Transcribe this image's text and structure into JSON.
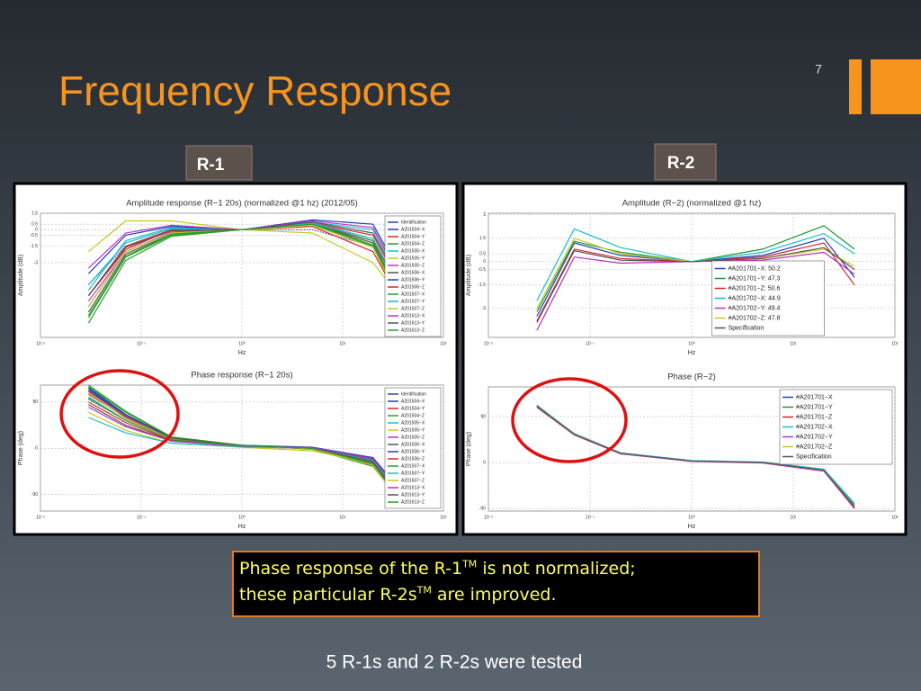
{
  "slide": {
    "title": "Frequency Response",
    "page_number": "7",
    "labels": [
      "R-1",
      "R-2"
    ],
    "callout": [
      "Phase response of the R-1",
      "TM",
      " is not normalized;",
      "these particular R-2s",
      "TM",
      " are improved."
    ],
    "footer": "5 R-1s and 2 R-2s were tested"
  },
  "chart_data": [
    {
      "type": "line",
      "title": "Amplitude response (R−1 20s) (normalized @1 hz) (2012/05)",
      "xlabel": "Hz",
      "ylabel": "Amplitude (dB)",
      "log_x": true,
      "grid": true,
      "legend": "upper right",
      "xlim": [
        0.01,
        100
      ],
      "xticks": [
        {
          "value": 0.01,
          "label": "10⁻²"
        },
        {
          "value": 0.1,
          "label": "10⁻¹"
        },
        {
          "value": 1,
          "label": "10⁰"
        },
        {
          "value": 10,
          "label": "10¹"
        },
        {
          "value": 100,
          "label": "10²"
        }
      ],
      "ylim": [
        -9.8,
        1.5
      ],
      "yticks": [
        1.5,
        0.5,
        0,
        -0.5,
        -1.5,
        -3
      ],
      "x": [
        0.03,
        0.07,
        0.2,
        1,
        5,
        20,
        40
      ],
      "series": [
        {
          "name": "Identification",
          "color": "#2a4a9a",
          "values": [
            -5,
            -1.5,
            0,
            0,
            0,
            -1.5,
            -5
          ]
        },
        {
          "name": "A201504−X",
          "color": "#1f3fbf",
          "values": [
            -7,
            -2,
            -0.3,
            0,
            0.5,
            -1,
            -6
          ]
        },
        {
          "name": "A201504−Y",
          "color": "#d62728",
          "values": [
            -6,
            -1.5,
            0,
            0,
            0.6,
            -0.5,
            -5.5
          ]
        },
        {
          "name": "A201504−Z",
          "color": "#2ca02c",
          "values": [
            -8,
            -2.5,
            -0.5,
            0,
            0.4,
            -1.5,
            -7
          ]
        },
        {
          "name": "A201505−X",
          "color": "#17becf",
          "values": [
            -5.5,
            -1,
            0.2,
            0,
            0.7,
            0,
            -5
          ]
        },
        {
          "name": "A201505−Y",
          "color": "#c8c820",
          "values": [
            -2,
            0.8,
            0.8,
            0,
            -0.3,
            -3,
            -6.5
          ]
        },
        {
          "name": "A201505−Z",
          "color": "#c130c1",
          "values": [
            -6.5,
            -2,
            -0.2,
            0,
            0.6,
            -1,
            -6
          ]
        },
        {
          "name": "A201506−X",
          "color": "#555555",
          "values": [
            -7.5,
            -2.2,
            -0.4,
            0,
            0.5,
            -1.2,
            -6.5
          ]
        },
        {
          "name": "A201506−Y",
          "color": "#1f3fbf",
          "values": [
            -4,
            -0.5,
            0.3,
            0,
            0.9,
            0.5,
            -4.5
          ]
        },
        {
          "name": "A201506−Z",
          "color": "#d62728",
          "values": [
            -6,
            -1.8,
            0,
            0,
            0.3,
            -2,
            -7
          ]
        },
        {
          "name": "A201507−X",
          "color": "#2ca02c",
          "values": [
            -8.5,
            -2.8,
            -0.6,
            0,
            0.5,
            -1,
            -6.8
          ]
        },
        {
          "name": "A201507−Y",
          "color": "#17becf",
          "values": [
            -5,
            -1.2,
            0.1,
            0,
            0.6,
            -0.8,
            -5.8
          ]
        },
        {
          "name": "A201507−Z",
          "color": "#c8c820",
          "values": [
            -7,
            -2,
            -0.3,
            0,
            0.4,
            -1.6,
            -7.2
          ]
        },
        {
          "name": "A201613−X",
          "color": "#c130c1",
          "values": [
            -3.5,
            -0.3,
            0.4,
            0,
            0.8,
            0.2,
            -4.8
          ]
        },
        {
          "name": "A201613−Y",
          "color": "#555555",
          "values": [
            -6,
            -1.6,
            -0.1,
            0,
            0.7,
            -0.3,
            -5.2
          ]
        },
        {
          "name": "A201613−Z",
          "color": "#2ca02c",
          "values": [
            -7.8,
            -2.4,
            -0.4,
            0,
            0.5,
            -1.4,
            -6.6
          ]
        }
      ]
    },
    {
      "type": "line",
      "title": "Phase response (R−1 20s)",
      "xlabel": "Hz",
      "ylabel": "Phase (deg)",
      "log_x": true,
      "grid": true,
      "legend": "upper right",
      "xlim": [
        0.01,
        100
      ],
      "xticks": [
        {
          "value": 0.01,
          "label": "10⁻²"
        },
        {
          "value": 0.1,
          "label": "10⁻¹"
        },
        {
          "value": 1,
          "label": "10⁰"
        },
        {
          "value": 10,
          "label": "10¹"
        },
        {
          "value": 100,
          "label": "10²"
        }
      ],
      "ylim": [
        -122,
        123
      ],
      "yticks": [
        90,
        0,
        -90
      ],
      "x": [
        0.03,
        0.07,
        0.2,
        1,
        5,
        20,
        40
      ],
      "series": [
        {
          "name": "Identification",
          "color": "#2a4a9a",
          "values": [
            95,
            55,
            18,
            5,
            0,
            -25,
            -95
          ]
        },
        {
          "name": "A201504−X",
          "color": "#1f3fbf",
          "values": [
            115,
            65,
            20,
            6,
            1,
            -30,
            -105
          ]
        },
        {
          "name": "A201504−Y",
          "color": "#d62728",
          "values": [
            105,
            60,
            18,
            5,
            0,
            -25,
            -95
          ]
        },
        {
          "name": "A201504−Z",
          "color": "#2ca02c",
          "values": [
            120,
            70,
            22,
            6,
            -2,
            -35,
            -110
          ]
        },
        {
          "name": "A201505−X",
          "color": "#17becf",
          "values": [
            100,
            55,
            16,
            5,
            1,
            -20,
            -90
          ]
        },
        {
          "name": "A201505−Y",
          "color": "#c8c820",
          "values": [
            70,
            35,
            10,
            2,
            -5,
            -30,
            -85
          ]
        },
        {
          "name": "A201505−Z",
          "color": "#c130c1",
          "values": [
            110,
            62,
            19,
            5,
            0,
            -28,
            -100
          ]
        },
        {
          "name": "A201506−X",
          "color": "#555555",
          "values": [
            85,
            45,
            14,
            4,
            0,
            -22,
            -92
          ]
        },
        {
          "name": "A201506−Y",
          "color": "#1f3fbf",
          "values": [
            118,
            66,
            21,
            6,
            2,
            -18,
            -88
          ]
        },
        {
          "name": "A201506−Z",
          "color": "#d62728",
          "values": [
            90,
            50,
            15,
            4,
            -1,
            -32,
            -108
          ]
        },
        {
          "name": "A201507−X",
          "color": "#2ca02c",
          "values": [
            123,
            72,
            22,
            6,
            0,
            -27,
            -98
          ]
        },
        {
          "name": "A201507−Y",
          "color": "#17becf",
          "values": [
            60,
            30,
            10,
            3,
            0,
            -24,
            -96
          ]
        },
        {
          "name": "A201507−Z",
          "color": "#c8c820",
          "values": [
            108,
            58,
            18,
            5,
            -1,
            -33,
            -112
          ]
        },
        {
          "name": "A201613−X",
          "color": "#c130c1",
          "values": [
            80,
            42,
            14,
            4,
            1,
            -20,
            -93
          ]
        },
        {
          "name": "A201613−Y",
          "color": "#555555",
          "values": [
            112,
            64,
            20,
            5,
            0,
            -26,
            -102
          ]
        },
        {
          "name": "A201613−Z",
          "color": "#2ca02c",
          "values": [
            98,
            54,
            17,
            5,
            0,
            -30,
            -104
          ]
        }
      ]
    },
    {
      "type": "line",
      "title": "Amplitude (R−2) (normalized @1 hz)",
      "xlabel": "Hz",
      "ylabel": "Amplitude (dB)",
      "log_x": true,
      "grid": true,
      "legend": "lower center",
      "xlim": [
        0.01,
        100
      ],
      "xticks": [
        {
          "value": 0.01,
          "label": "10⁻²"
        },
        {
          "value": 0.1,
          "label": "10⁻¹"
        },
        {
          "value": 1,
          "label": "10⁰"
        },
        {
          "value": 10,
          "label": "10¹"
        },
        {
          "value": 100,
          "label": "10²"
        }
      ],
      "ylim": [
        -4.85,
        3.1
      ],
      "yticks": [
        3,
        1.5,
        0.5,
        0,
        -0.5,
        -1.5,
        -3
      ],
      "x": [
        0.03,
        0.07,
        0.2,
        1,
        5,
        20,
        40
      ],
      "series": [
        {
          "name": "#A201701−X: 50.2",
          "color": "#1f3fbf",
          "values": [
            -3.5,
            1.2,
            0.4,
            0,
            0.4,
            1.5,
            -1
          ]
        },
        {
          "name": "#A201701−Y: 47.3",
          "color": "#1a9a2a",
          "values": [
            -3.2,
            1.3,
            0.6,
            0,
            0.8,
            2.3,
            0.8
          ]
        },
        {
          "name": "#A201701−Z: 50.6",
          "color": "#d62728",
          "values": [
            -3.8,
            0.8,
            0.2,
            0,
            0.3,
            1.2,
            -1.5
          ]
        },
        {
          "name": "#A201702−X: 44.9",
          "color": "#17becf",
          "values": [
            -2.5,
            2.1,
            0.9,
            0,
            0.6,
            1.8,
            0.5
          ]
        },
        {
          "name": "#A201702−Y: 49.4",
          "color": "#c130c1",
          "values": [
            -4.4,
            0.3,
            -0.1,
            0,
            0.1,
            0.6,
            -0.8
          ]
        },
        {
          "name": "#A201702−Z: 47.8",
          "color": "#c8c820",
          "values": [
            -3,
            1.5,
            0.5,
            0,
            0.2,
            0.8,
            -0.3
          ]
        },
        {
          "name": "Specification",
          "color": "#555555",
          "values": [
            -3.9,
            0.7,
            0.1,
            0,
            0.2,
            0.9,
            -0.5
          ]
        }
      ]
    },
    {
      "type": "line",
      "title": "Phase (R−2)",
      "xlabel": "Hz",
      "ylabel": "Phase (deg)",
      "log_x": true,
      "grid": true,
      "legend": "upper right",
      "xlim": [
        0.01,
        100
      ],
      "xticks": [
        {
          "value": 0.01,
          "label": "10⁻²"
        },
        {
          "value": 0.1,
          "label": "10⁻¹"
        },
        {
          "value": 1,
          "label": "10⁰"
        },
        {
          "value": 10,
          "label": "10¹"
        },
        {
          "value": 100,
          "label": "10²"
        }
      ],
      "ylim": [
        -95,
        148
      ],
      "yticks": [
        90,
        0,
        -90
      ],
      "x": [
        0.03,
        0.07,
        0.2,
        1,
        5,
        20,
        40
      ],
      "series": [
        {
          "name": "#A201701−X",
          "color": "#1f3fbf",
          "values": [
            110,
            55,
            18,
            3,
            0,
            -15,
            -85
          ]
        },
        {
          "name": "#A201701−Y",
          "color": "#1a9a2a",
          "values": [
            112,
            56,
            19,
            3,
            0,
            -14,
            -83
          ]
        },
        {
          "name": "#A201701−Z",
          "color": "#d62728",
          "values": [
            108,
            54,
            17,
            3,
            0,
            -16,
            -88
          ]
        },
        {
          "name": "#A201702−X",
          "color": "#17becf",
          "values": [
            111,
            57,
            19,
            4,
            1,
            -13,
            -80
          ]
        },
        {
          "name": "#A201702−Y",
          "color": "#c130c1",
          "values": [
            109,
            54,
            17,
            2,
            -1,
            -17,
            -90
          ]
        },
        {
          "name": "#A201702−Z",
          "color": "#c8c820",
          "values": [
            110,
            56,
            18,
            3,
            0,
            -15,
            -86
          ]
        },
        {
          "name": "Specification",
          "color": "#555555",
          "values": [
            110,
            55,
            18,
            3,
            0,
            -15,
            -87
          ]
        }
      ]
    }
  ]
}
